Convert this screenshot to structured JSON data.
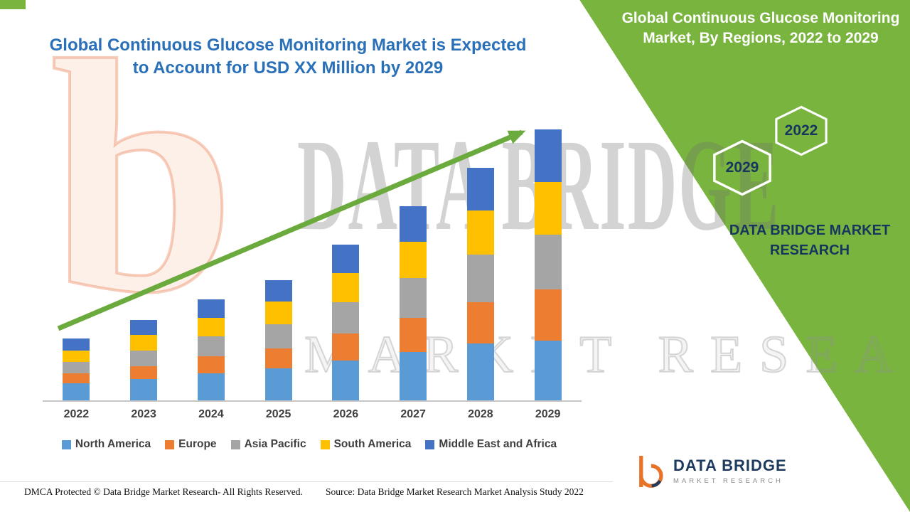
{
  "header": {
    "title": "Global Continuous Glucose Monitoring Market is Expected to Account for USD XX Million by 2029"
  },
  "right_panel": {
    "heading": "Global Continuous Glucose Monitoring Market, By Regions, 2022 to 2029",
    "hexagons": [
      {
        "label": "2029"
      },
      {
        "label": "2022"
      }
    ],
    "brand": "DATA BRIDGE MARKET RESEARCH"
  },
  "watermark": {
    "brand": "DATA BRIDGE",
    "sub": "MARKET RESEARCH",
    "letter": "b"
  },
  "footer": {
    "dmca": "DMCA Protected © Data Bridge Market Research- All Rights Reserved.",
    "source": "Source: Data Bridge Market Research Market Analysis Study 2022"
  },
  "logo": {
    "name": "DATA BRIDGE",
    "tagline": "MARKET RESEARCH"
  },
  "colors": {
    "accent_green": "#79B43F",
    "arrow_green": "#6BAA3C",
    "title_blue": "#2A70B8",
    "navy": "#17365D"
  },
  "chart_data": {
    "type": "bar",
    "stacked": true,
    "title": "Global Continuous Glucose Monitoring Market is Expected to Account for USD XX Million by 2029",
    "xlabel": "",
    "ylabel": "",
    "value_axis_visible": false,
    "legend_position": "bottom",
    "categories": [
      "2022",
      "2023",
      "2024",
      "2025",
      "2026",
      "2027",
      "2028",
      "2029"
    ],
    "series": [
      {
        "name": "North America",
        "color": "#5B9BD5",
        "values": [
          2.4,
          3.0,
          3.8,
          4.5,
          5.6,
          6.8,
          8.0,
          8.4
        ]
      },
      {
        "name": "Europe",
        "color": "#ED7D31",
        "values": [
          1.4,
          1.8,
          2.4,
          2.8,
          3.8,
          4.8,
          5.8,
          7.2
        ]
      },
      {
        "name": "Asia Pacific",
        "color": "#A5A5A5",
        "values": [
          1.6,
          2.2,
          2.8,
          3.4,
          4.4,
          5.6,
          6.8,
          7.8
        ]
      },
      {
        "name": "South America",
        "color": "#FFC000",
        "values": [
          1.6,
          2.2,
          2.6,
          3.2,
          4.2,
          5.2,
          6.2,
          7.4
        ]
      },
      {
        "name": "Middle East and Africa",
        "color": "#4472C4",
        "values": [
          1.7,
          2.1,
          2.6,
          3.0,
          4.0,
          5.0,
          6.0,
          7.4
        ]
      }
    ]
  }
}
